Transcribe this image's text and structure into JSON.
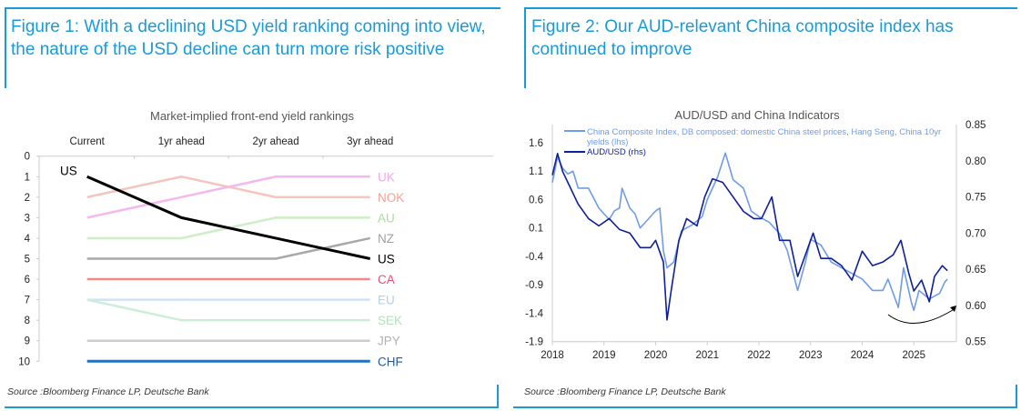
{
  "figure1": {
    "title": "Figure 1: With a declining USD yield ranking coming into view, the nature of the USD decline can turn more risk positive",
    "source": "Source :Bloomberg Finance LP, Deutsche Bank"
  },
  "figure2": {
    "title": "Figure 2: Our AUD-relevant China composite index has continued to improve",
    "source": "Source :Bloomberg Finance LP, Deutsche Bank"
  },
  "chart_data": [
    {
      "type": "line",
      "title": "Market-implied front-end yield rankings",
      "categories": [
        "Current",
        "1yr ahead",
        "2yr ahead",
        "3yr ahead"
      ],
      "ylim": [
        0,
        10
      ],
      "y_inverted": true,
      "y_ticks": [
        "0",
        "1",
        "2",
        "3",
        "4",
        "5",
        "6",
        "7",
        "8",
        "9",
        "10"
      ],
      "start_label": "US",
      "series": [
        {
          "name": "UK",
          "values": [
            3,
            2,
            1,
            1
          ],
          "color": "#f2b8ef",
          "label_color": "#f0a8ec"
        },
        {
          "name": "NOK",
          "values": [
            2,
            1,
            2,
            2
          ],
          "color": "#f5c4bc",
          "label_color": "#f4a090"
        },
        {
          "name": "AU",
          "values": [
            4,
            4,
            3,
            3
          ],
          "color": "#cdeec6",
          "label_color": "#a8e098"
        },
        {
          "name": "NZ",
          "values": [
            5,
            5,
            5,
            4
          ],
          "color": "#a8a8a8",
          "label_color": "#a0a0a0"
        },
        {
          "name": "CA",
          "values": [
            6,
            6,
            6,
            6
          ],
          "color": "#ec8a8a",
          "label_color": "#e8507a"
        },
        {
          "name": "EU",
          "values": [
            7,
            7,
            7,
            7
          ],
          "color": "#cfe3f8",
          "label_color": "#b0d0f0"
        },
        {
          "name": "SEK",
          "values": [
            7,
            8,
            8,
            8
          ],
          "color": "#cdeed6",
          "label_color": "#b0e4b8"
        },
        {
          "name": "JPY",
          "values": [
            9,
            9,
            9,
            9
          ],
          "color": "#cccccc",
          "label_color": "#b0b0b0"
        },
        {
          "name": "CHF",
          "values": [
            10,
            10,
            10,
            10
          ],
          "color": "#1f72c4",
          "label_color": "#1f5a9c"
        },
        {
          "name": "US",
          "values": [
            1,
            3,
            4,
            5
          ],
          "color": "#000000",
          "label_color": "#000000"
        }
      ]
    },
    {
      "type": "line",
      "title": "AUD/USD and China Indicators",
      "x_ticks": [
        "2018",
        "2019",
        "2020",
        "2021",
        "2022",
        "2023",
        "2024",
        "2025"
      ],
      "xlim": [
        2018,
        2025.83
      ],
      "y_left_ticks": [
        "1.6",
        "1.1",
        "0.6",
        "0.1",
        "-0.4",
        "-0.9",
        "-1.4",
        "-1.9"
      ],
      "y_left_lim": [
        -1.9,
        1.92
      ],
      "y_right_ticks": [
        "0.85",
        "0.80",
        "0.75",
        "0.70",
        "0.65",
        "0.60",
        "0.55"
      ],
      "y_right_lim": [
        0.55,
        0.85
      ],
      "legend_position": "top-left",
      "annotation": "arrow indicating recent upturn",
      "series": [
        {
          "name": "China Composite Index, DB composed: domestic China steel prices, Hang Seng, China 10yr yields (lhs)",
          "axis": "left",
          "color": "#6f9be8",
          "x": [
            2018.0,
            2018.1,
            2018.2,
            2018.3,
            2018.4,
            2018.5,
            2018.7,
            2018.9,
            2019.1,
            2019.2,
            2019.3,
            2019.35,
            2019.5,
            2019.6,
            2019.7,
            2019.9,
            2020.0,
            2020.08,
            2020.15,
            2020.22,
            2020.35,
            2020.5,
            2020.7,
            2020.9,
            2021.0,
            2021.2,
            2021.35,
            2021.5,
            2021.7,
            2021.85,
            2022.0,
            2022.2,
            2022.4,
            2022.55,
            2022.75,
            2022.9,
            2023.0,
            2023.2,
            2023.4,
            2023.6,
            2023.8,
            2024.0,
            2024.2,
            2024.4,
            2024.5,
            2024.7,
            2024.8,
            2024.95,
            2025.0,
            2025.1,
            2025.3,
            2025.5,
            2025.6,
            2025.65
          ],
          "values": [
            0.9,
            1.35,
            1.15,
            1.05,
            1.1,
            0.8,
            0.8,
            0.45,
            0.25,
            0.4,
            0.45,
            0.8,
            0.45,
            0.35,
            0.1,
            0.3,
            0.4,
            0.45,
            -0.3,
            -0.6,
            -0.5,
            0.05,
            0.15,
            0.3,
            0.6,
            1.0,
            1.42,
            0.95,
            0.8,
            0.4,
            0.3,
            0.2,
            0.0,
            -0.3,
            -1.0,
            -0.5,
            -0.1,
            -0.2,
            -0.5,
            -0.6,
            -0.7,
            -0.8,
            -1.0,
            -1.0,
            -0.8,
            -1.3,
            -0.6,
            -1.2,
            -1.35,
            -1.0,
            -1.15,
            -1.05,
            -0.85,
            -0.8
          ]
        },
        {
          "name": "AUD/USD (rhs)",
          "axis": "right",
          "color": "#0f1f9a",
          "x": [
            2018.0,
            2018.1,
            2018.2,
            2018.3,
            2018.5,
            2018.7,
            2018.9,
            2019.1,
            2019.3,
            2019.5,
            2019.7,
            2019.9,
            2020.0,
            2020.15,
            2020.22,
            2020.3,
            2020.45,
            2020.6,
            2020.8,
            2020.95,
            2021.1,
            2021.3,
            2021.5,
            2021.7,
            2021.9,
            2022.05,
            2022.25,
            2022.4,
            2022.6,
            2022.75,
            2022.9,
            2023.05,
            2023.2,
            2023.4,
            2023.6,
            2023.8,
            2024.0,
            2024.2,
            2024.4,
            2024.6,
            2024.75,
            2024.9,
            2025.0,
            2025.15,
            2025.3,
            2025.4,
            2025.55,
            2025.65
          ],
          "values": [
            0.78,
            0.81,
            0.785,
            0.77,
            0.74,
            0.72,
            0.71,
            0.72,
            0.705,
            0.7,
            0.68,
            0.68,
            0.69,
            0.66,
            0.58,
            0.62,
            0.69,
            0.72,
            0.71,
            0.75,
            0.775,
            0.77,
            0.75,
            0.73,
            0.72,
            0.72,
            0.75,
            0.69,
            0.69,
            0.64,
            0.67,
            0.7,
            0.665,
            0.665,
            0.655,
            0.635,
            0.675,
            0.655,
            0.66,
            0.67,
            0.69,
            0.645,
            0.62,
            0.635,
            0.605,
            0.64,
            0.655,
            0.648
          ]
        }
      ]
    }
  ]
}
